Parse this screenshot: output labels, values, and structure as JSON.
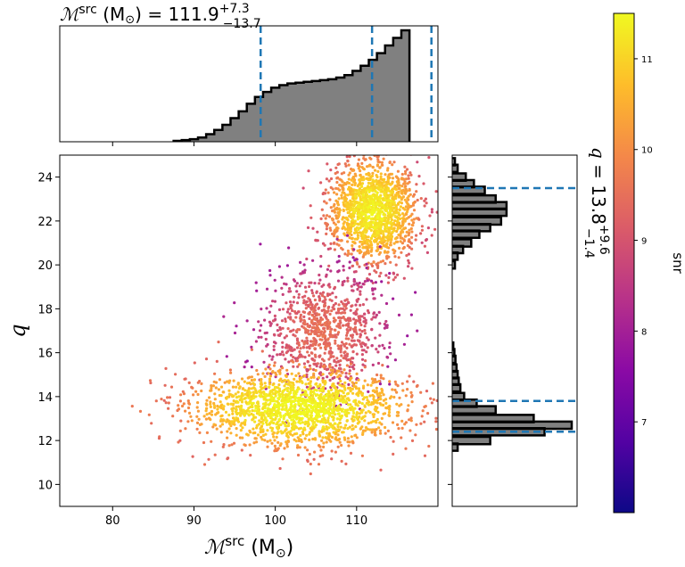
{
  "colors": {
    "hist_fill": "#808080",
    "hist_edge": "#000000",
    "quantile_line": "#1f77b4",
    "colormap": [
      "#0d0887",
      "#5302a3",
      "#8b0aa5",
      "#b83289",
      "#db5c68",
      "#f48849",
      "#febd2a",
      "#f0f921"
    ]
  },
  "text": {
    "top_title_main": "ℳ",
    "top_title_sup": "src",
    "top_title_unit": " (M",
    "top_title_sun": "⊙",
    "top_title_eq": ") = 111.9",
    "top_title_plus": "+7.3",
    "top_title_minus": "−13.7",
    "right_title_main": "q",
    "right_title_eq": " = 13.8",
    "right_title_plus": "+9.6",
    "right_title_minus": "−1.4",
    "xlabel_main": "ℳ",
    "xlabel_sup": "src",
    "xlabel_unit": " (M",
    "xlabel_sun": "⊙",
    "xlabel_close": ")",
    "ylabel": "q",
    "colorbar_label": "snr"
  },
  "chart_data": [
    {
      "type": "scatter",
      "xlabel": "ℳsrc (M⊙)",
      "ylabel": "q",
      "xlim": [
        73.5,
        120
      ],
      "ylim": [
        9,
        25
      ],
      "xticks": [
        80,
        90,
        100,
        110
      ],
      "yticks": [
        10,
        12,
        14,
        16,
        18,
        20,
        22,
        24
      ],
      "color_by": "snr",
      "clusters": [
        {
          "center": [
            112,
            22.5
          ],
          "spread": [
            5,
            2.2
          ],
          "snr_range": [
            9,
            11.4
          ]
        },
        {
          "center": [
            106,
            17
          ],
          "spread": [
            7,
            2.5
          ],
          "snr_range": [
            8,
            9.5
          ]
        },
        {
          "center": [
            103,
            13.5
          ],
          "spread": [
            12,
            1.6
          ],
          "snr_range": [
            9.5,
            11.5
          ]
        }
      ]
    },
    {
      "type": "histogram",
      "panel": "top-marginal",
      "variable": "ℳsrc",
      "xlim": [
        73.5,
        120
      ],
      "bin_edges_start": 87.5,
      "bin_width": 1.0,
      "counts": [
        1,
        2,
        3,
        5,
        9,
        14,
        20,
        28,
        36,
        45,
        53,
        59,
        64,
        67,
        69,
        70,
        71,
        72,
        73,
        74,
        76,
        79,
        84,
        90,
        97,
        105,
        114,
        123,
        132
      ],
      "quantiles": [
        98.2,
        111.9,
        119.2
      ]
    },
    {
      "type": "histogram",
      "panel": "right-marginal",
      "variable": "q",
      "ylim": [
        9,
        25
      ],
      "bins": [
        {
          "q": 24.7,
          "count": 0.05
        },
        {
          "q": 24.4,
          "count": 0.1
        },
        {
          "q": 24.0,
          "count": 0.25
        },
        {
          "q": 23.7,
          "count": 0.4
        },
        {
          "q": 23.4,
          "count": 0.6
        },
        {
          "q": 23.0,
          "count": 0.8
        },
        {
          "q": 22.7,
          "count": 1.0
        },
        {
          "q": 22.4,
          "count": 1.0
        },
        {
          "q": 22.0,
          "count": 0.9
        },
        {
          "q": 21.7,
          "count": 0.7
        },
        {
          "q": 21.4,
          "count": 0.5
        },
        {
          "q": 21.0,
          "count": 0.35
        },
        {
          "q": 20.7,
          "count": 0.2
        },
        {
          "q": 20.4,
          "count": 0.1
        },
        {
          "q": 20.0,
          "count": 0.05
        },
        {
          "q": 16.3,
          "count": 0.02
        },
        {
          "q": 16.0,
          "count": 0.04
        },
        {
          "q": 15.7,
          "count": 0.06
        },
        {
          "q": 15.3,
          "count": 0.08
        },
        {
          "q": 15.0,
          "count": 0.1
        },
        {
          "q": 14.7,
          "count": 0.12
        },
        {
          "q": 14.4,
          "count": 0.15
        },
        {
          "q": 14.0,
          "count": 0.22
        },
        {
          "q": 13.7,
          "count": 0.45
        },
        {
          "q": 13.4,
          "count": 0.8
        },
        {
          "q": 13.0,
          "count": 1.5
        },
        {
          "q": 12.7,
          "count": 2.2
        },
        {
          "q": 12.4,
          "count": 1.7
        },
        {
          "q": 12.0,
          "count": 0.7
        },
        {
          "q": 11.7,
          "count": 0.1
        }
      ],
      "quantiles": [
        23.5,
        13.8,
        12.4
      ]
    },
    {
      "type": "colorbar",
      "label": "snr",
      "range": [
        6,
        11.5
      ],
      "ticks": [
        7,
        8,
        9,
        10,
        11
      ]
    }
  ]
}
